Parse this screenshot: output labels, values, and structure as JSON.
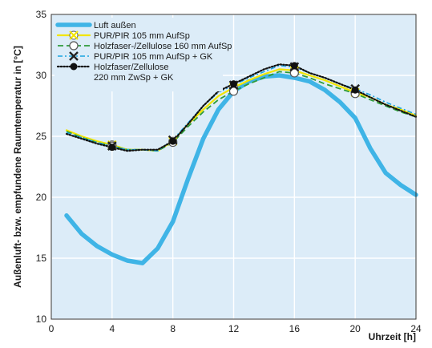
{
  "chart_data": {
    "type": "line",
    "xlabel": "Uhrzeit [h]",
    "ylabel": "Außenluft- bzw. empfundene Raumtemperatur in [°C]",
    "xlim": [
      0,
      24
    ],
    "ylim": [
      10,
      35
    ],
    "xticks": [
      0,
      4,
      8,
      12,
      16,
      20,
      24
    ],
    "yticks": [
      10,
      15,
      20,
      25,
      30,
      35
    ],
    "grid": true,
    "legend_position": "top-left",
    "background": "#dcecf8",
    "series": [
      {
        "name": "Luft außen",
        "color": "#3fb4e6",
        "style": "thick",
        "x": [
          1,
          2,
          3,
          4,
          5,
          6,
          7,
          8,
          9,
          10,
          11,
          12,
          13,
          14,
          15,
          16,
          17,
          18,
          19,
          20,
          21,
          22,
          23,
          24
        ],
        "y": [
          18.5,
          17.0,
          16.0,
          15.3,
          14.8,
          14.6,
          15.8,
          18.0,
          21.5,
          24.8,
          27.2,
          28.7,
          29.5,
          29.9,
          30.0,
          29.8,
          29.5,
          28.8,
          27.8,
          26.5,
          24.0,
          22.0,
          21.0,
          20.2
        ],
        "markers": []
      },
      {
        "name": "PUR/PIR 105 mm AufSp",
        "color": "#f2e500",
        "style": "solid",
        "x": [
          1,
          2,
          3,
          4,
          5,
          6,
          7,
          8,
          9,
          10,
          11,
          12,
          13,
          14,
          15,
          16,
          17,
          18,
          19,
          20,
          21,
          22,
          23,
          24
        ],
        "y": [
          25.5,
          25.0,
          24.6,
          24.3,
          23.9,
          23.9,
          23.8,
          24.6,
          26.0,
          27.2,
          28.3,
          29.0,
          29.6,
          30.1,
          30.5,
          30.4,
          30.0,
          29.6,
          29.1,
          28.6,
          28.2,
          27.6,
          27.2,
          26.7
        ],
        "markers": [
          4,
          8,
          12,
          16,
          20
        ],
        "marker": "crossed-circle"
      },
      {
        "name": "Holzfaser-/Zellulose 160 mm AufSp",
        "color": "#2e9b3a",
        "style": "dashed",
        "x": [
          1,
          2,
          3,
          4,
          5,
          6,
          7,
          8,
          9,
          10,
          11,
          12,
          13,
          14,
          15,
          16,
          17,
          18,
          19,
          20,
          21,
          22,
          23,
          24
        ],
        "y": [
          25.4,
          24.9,
          24.5,
          24.2,
          23.9,
          23.9,
          23.8,
          24.5,
          25.8,
          27.0,
          28.0,
          28.7,
          29.3,
          29.8,
          30.3,
          30.2,
          29.8,
          29.3,
          28.9,
          28.5,
          28.0,
          27.5,
          27.0,
          26.6
        ],
        "markers": [
          4,
          8,
          12,
          16,
          20
        ],
        "marker": "open-circle"
      },
      {
        "name": "PUR/PIR 105 mm AufSp + GK",
        "color": "#1aa3e0",
        "style": "dashdot",
        "x": [
          1,
          2,
          3,
          4,
          5,
          6,
          7,
          8,
          9,
          10,
          11,
          12,
          13,
          14,
          15,
          16,
          17,
          18,
          19,
          20,
          21,
          22,
          23,
          24
        ],
        "y": [
          25.3,
          24.9,
          24.5,
          24.2,
          23.9,
          23.9,
          23.8,
          24.7,
          26.1,
          27.5,
          28.6,
          29.2,
          29.8,
          30.3,
          30.8,
          30.7,
          30.2,
          29.8,
          29.3,
          28.9,
          28.4,
          27.8,
          27.3,
          26.8
        ],
        "markers": [
          4,
          8,
          12,
          16,
          20
        ],
        "marker": "x"
      },
      {
        "name": "Holzfaser/Zellulose\n220 mm ZwSp + GK",
        "color": "#111111",
        "style": "dotted",
        "x": [
          1,
          2,
          3,
          4,
          5,
          6,
          7,
          8,
          9,
          10,
          11,
          12,
          13,
          14,
          15,
          16,
          17,
          18,
          19,
          20,
          21,
          22,
          23,
          24
        ],
        "y": [
          25.2,
          24.8,
          24.4,
          24.1,
          23.8,
          23.9,
          23.9,
          24.6,
          26.0,
          27.5,
          28.7,
          29.3,
          29.9,
          30.5,
          30.9,
          30.8,
          30.2,
          29.8,
          29.3,
          28.8,
          28.2,
          27.6,
          27.1,
          26.6
        ],
        "markers": [
          4,
          8,
          12,
          16,
          20
        ],
        "marker": "filled-circle"
      }
    ]
  }
}
